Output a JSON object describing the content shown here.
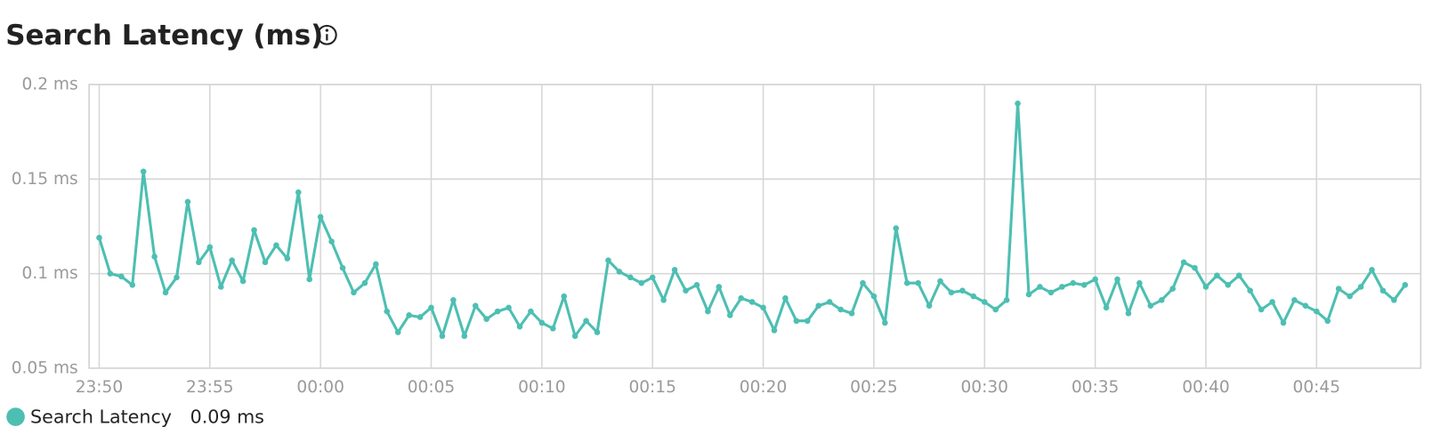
{
  "chart_data": {
    "type": "line",
    "title": "Search Latency (ms)",
    "categories": [
      "23:50",
      null,
      null,
      null,
      null,
      null,
      null,
      null,
      null,
      null,
      "23:55",
      null,
      null,
      null,
      null,
      null,
      null,
      null,
      null,
      null,
      "00:00",
      null,
      null,
      null,
      null,
      null,
      null,
      null,
      null,
      null,
      "00:05",
      null,
      null,
      null,
      null,
      null,
      null,
      null,
      null,
      null,
      "00:10",
      null,
      null,
      null,
      null,
      null,
      null,
      null,
      null,
      null,
      "00:15",
      null,
      null,
      null,
      null,
      null,
      null,
      null,
      null,
      null,
      "00:20",
      null,
      null,
      null,
      null,
      null,
      null,
      null,
      null,
      null,
      "00:25",
      null,
      null,
      null,
      null,
      null,
      null,
      null,
      null,
      null,
      "00:30",
      null,
      null,
      null,
      null,
      null,
      null,
      null,
      null,
      null,
      "00:35",
      null,
      null,
      null,
      null,
      null,
      null,
      null,
      null,
      null,
      "00:40",
      null,
      null,
      null,
      null,
      null,
      null,
      null,
      null,
      null,
      "00:45",
      null,
      null,
      null,
      null,
      null,
      null,
      null,
      null
    ],
    "series": [
      {
        "name": "Search Latency",
        "color": "#4dbfb2",
        "values": [
          0.119,
          0.1,
          0.0985,
          0.094,
          0.154,
          0.109,
          0.09,
          0.098,
          0.138,
          0.106,
          0.114,
          0.093,
          0.107,
          0.096,
          0.123,
          0.106,
          0.115,
          0.108,
          0.143,
          0.097,
          0.13,
          0.117,
          0.103,
          0.09,
          0.095,
          0.105,
          0.08,
          0.069,
          0.078,
          0.077,
          0.082,
          0.067,
          0.086,
          0.067,
          0.083,
          0.076,
          0.08,
          0.082,
          0.072,
          0.08,
          0.074,
          0.071,
          0.088,
          0.067,
          0.075,
          0.069,
          0.107,
          0.101,
          0.098,
          0.095,
          0.098,
          0.086,
          0.102,
          0.091,
          0.094,
          0.08,
          0.093,
          0.078,
          0.087,
          0.085,
          0.082,
          0.07,
          0.087,
          0.075,
          0.075,
          0.083,
          0.085,
          0.081,
          0.079,
          0.095,
          0.088,
          0.074,
          0.124,
          0.095,
          0.095,
          0.083,
          0.096,
          0.09,
          0.091,
          0.088,
          0.085,
          0.081,
          0.086,
          0.19,
          0.089,
          0.093,
          0.09,
          0.093,
          0.095,
          0.094,
          0.097,
          0.082,
          0.097,
          0.079,
          0.095,
          0.083,
          0.086,
          0.092,
          0.106,
          0.103,
          0.093,
          0.099,
          0.094,
          0.099,
          0.091,
          0.081,
          0.085,
          0.074,
          0.086,
          0.083,
          0.08,
          0.075,
          0.092,
          0.088,
          0.093,
          0.102,
          0.091,
          0.086,
          0.094
        ]
      }
    ],
    "ylim": [
      0.05,
      0.2
    ],
    "yticks": [
      {
        "value": 0.05,
        "label": "0.05 ms"
      },
      {
        "value": 0.1,
        "label": "0.1 ms"
      },
      {
        "value": 0.15,
        "label": "0.15 ms"
      },
      {
        "value": 0.2,
        "label": "0.2 ms"
      }
    ],
    "grid": true,
    "legend_value": "0.09 ms"
  }
}
